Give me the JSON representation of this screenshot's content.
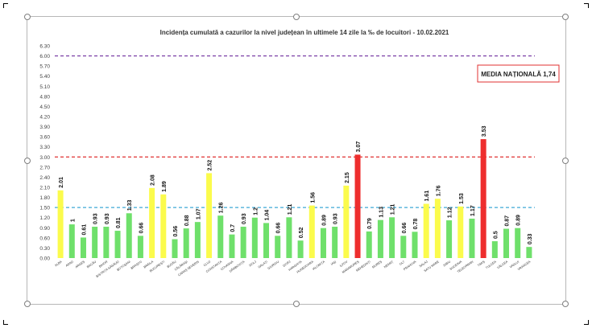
{
  "chart_data": {
    "type": "bar",
    "title": "Incidența cumulată a cazurilor la nivel județean în ultimele 14 zile la ‰ de locuitori - 10.02.2021",
    "xlabel": "",
    "ylabel": "",
    "ylim": [
      0,
      6.3
    ],
    "yticks": [
      "0.00",
      "0.30",
      "0.60",
      "0.90",
      "1.20",
      "1.50",
      "1.80",
      "2.10",
      "2.40",
      "2.70",
      "3.00",
      "3.30",
      "3.60",
      "3.90",
      "4.20",
      "4.50",
      "4.80",
      "5.10",
      "5.40",
      "5.70",
      "6.00",
      "6.30"
    ],
    "categories": [
      "ALBA",
      "ARAD",
      "ARGEȘ",
      "BACĂU",
      "BIHOR",
      "BISTRIȚA NĂSĂUD",
      "BOTOȘANI",
      "BRAȘOV",
      "BRĂILA",
      "BUCUREȘTI",
      "BUZĂU",
      "CĂLĂRAȘI",
      "CARAȘ SEVERIN",
      "CLUJ",
      "CONSTANȚA",
      "COVASNA",
      "DÂMBOVIȚA",
      "DOLJ",
      "GALAȚI",
      "GIURGIU",
      "GORJ",
      "HARGHITA",
      "HUNEDOARA",
      "IALOMIȚA",
      "IAȘI",
      "ILFOV",
      "MARAMUREȘ",
      "MEHEDINȚI",
      "MUREȘ",
      "NEAMȚ",
      "OLT",
      "PRAHOVA",
      "SALAJ",
      "SATU MARE",
      "SIBIU",
      "SUCEAVA",
      "TELEORMAN",
      "TIMIȘ",
      "TULCEA",
      "VÂLCEA",
      "VASLUI",
      "VRANCEA"
    ],
    "values": [
      2.01,
      1,
      0.61,
      0.93,
      0.93,
      0.81,
      1.33,
      0.66,
      2.08,
      1.89,
      0.56,
      0.88,
      1.07,
      2.52,
      1.26,
      0.7,
      0.93,
      1.2,
      1.04,
      0.66,
      1.21,
      0.52,
      1.56,
      0.89,
      0.93,
      2.15,
      3.07,
      0.79,
      1.13,
      1.21,
      0.66,
      0.78,
      1.61,
      1.76,
      1.12,
      1.53,
      1.17,
      3.53,
      0.5,
      0.87,
      0.89,
      0.33
    ],
    "value_labels": [
      "2.01",
      "1",
      "0.61",
      "0.93",
      "0.93",
      "0.81",
      "1.33",
      "0.66",
      "2.08",
      "1.89",
      "0.56",
      "0.88",
      "1.07",
      "2.52",
      "1.26",
      "0.7",
      "0.93",
      "1.2",
      "1.04",
      "0.66",
      "1.21",
      "0.52",
      "1.56",
      "0.89",
      "0.93",
      "2.15",
      "3.07",
      "0.79",
      "1.13",
      "1.21",
      "0.66",
      "0.78",
      "1.61",
      "1.76",
      "1.12",
      "1.53",
      "1.17",
      "3.53",
      "0.5",
      "0.87",
      "0.89",
      "0.33"
    ],
    "reference_lines": [
      {
        "value": 6.0,
        "color": "#7030a0",
        "style": "dashed"
      },
      {
        "value": 3.0,
        "color": "#e03131",
        "style": "dashed"
      },
      {
        "value": 1.5,
        "color": "#3fa9d6",
        "style": "dashed"
      }
    ],
    "thresholds": {
      "low": 1.5,
      "high": 3.0
    },
    "colors": {
      "green": "#6fe06b",
      "yellow": "#fbfb4c",
      "red": "#ee2e2e"
    },
    "annotation": "MEDIA NAȚIONALĂ 1,74",
    "annotation_border_color": "#e03131",
    "grid": false,
    "legend": "none"
  }
}
